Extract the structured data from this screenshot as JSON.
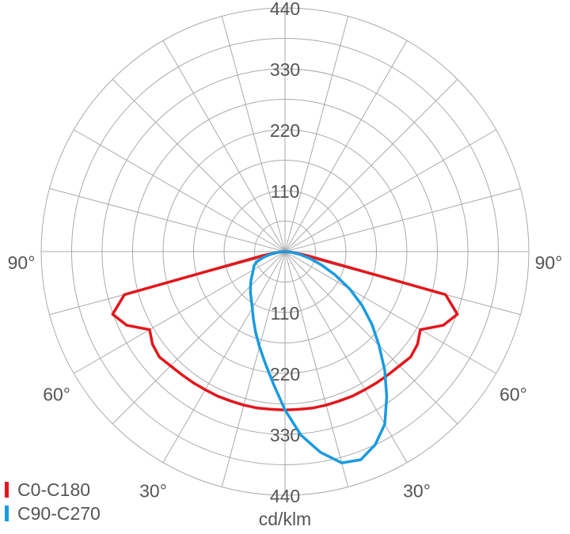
{
  "chart_data": {
    "type": "polar",
    "axis_label": "cd/klm",
    "rlim": [
      0,
      440
    ],
    "rticks": [
      110,
      220,
      330,
      440
    ],
    "xticks": [
      {
        "value": -90,
        "label": "90°"
      },
      {
        "value": -60,
        "label": "60°"
      },
      {
        "value": -30,
        "label": "30°"
      },
      {
        "value": 30,
        "label": "30°"
      },
      {
        "value": 60,
        "label": "60°"
      },
      {
        "value": 90,
        "label": "90°"
      }
    ],
    "x": [
      -90,
      -85,
      -80,
      -75,
      -70,
      -65,
      -60,
      -55,
      -50,
      -45,
      -40,
      -35,
      -30,
      -25,
      -20,
      -15,
      -10,
      -5,
      0,
      5,
      10,
      15,
      20,
      25,
      30,
      35,
      40,
      45,
      50,
      55,
      60,
      65,
      70,
      75,
      80,
      85,
      90
    ],
    "series": [
      {
        "name": "C0-C180",
        "color": "#e3161b",
        "values": [
          0,
          12,
          40,
          300,
          331,
          315,
          282,
          292,
          296,
          292,
          290,
          289,
          288,
          288,
          287,
          287,
          287,
          286,
          286,
          286,
          287,
          287,
          287,
          288,
          288,
          289,
          290,
          292,
          296,
          292,
          282,
          315,
          331,
          300,
          40,
          12,
          0
        ]
      },
      {
        "name": "C90-C270",
        "color": "#1a9be0",
        "values": [
          0,
          10,
          25,
          40,
          55,
          62,
          66,
          72,
          80,
          88,
          97,
          106,
          118,
          135,
          155,
          178,
          205,
          240,
          286,
          333,
          368,
          395,
          400,
          385,
          360,
          320,
          280,
          240,
          205,
          170,
          135,
          100,
          70,
          45,
          25,
          10,
          0
        ]
      }
    ],
    "grid": true
  }
}
